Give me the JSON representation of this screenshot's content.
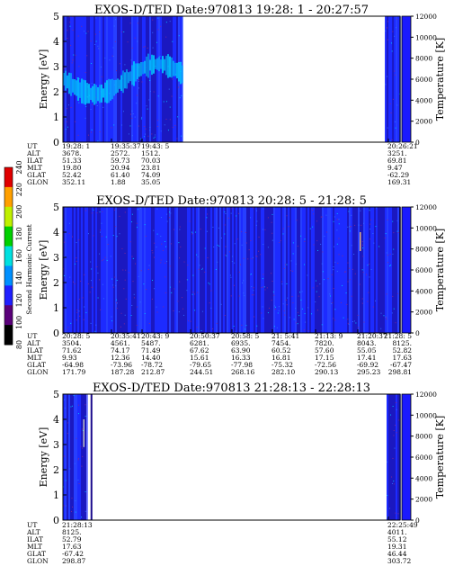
{
  "colors": {
    "background": "#ffffff",
    "spectrogram_low": "#1a0a8c",
    "spectrogram_mid": "#1e2bff",
    "spectrogram_high": "#00c8ff",
    "temperature_bar": "#1a1aff"
  },
  "colorbar": {
    "label": "Second Harmonic Current",
    "ticks": [
      "80",
      "100",
      "120",
      "140",
      "160",
      "180",
      "200",
      "220",
      "240"
    ],
    "colors": [
      "#000000",
      "#5a007a",
      "#2020ff",
      "#0090ff",
      "#00e0e0",
      "#00d000",
      "#c0f000",
      "#ffa000",
      "#e00000"
    ]
  },
  "panels": [
    {
      "title": "EXOS-D/TED   Date:970813  19:28: 1 - 20:27:57",
      "ylabel": "Energy [eV]",
      "y2label": "Temperature [K]",
      "yticks": [
        "0",
        "1",
        "2",
        "3",
        "4",
        "5"
      ],
      "y2ticks": [
        "0",
        "2000",
        "4000",
        "6000",
        "8000",
        "10000",
        "12000"
      ],
      "xticks": [
        "19:28: 1",
        "19:35:37",
        "19:43: 5",
        "20:26:21"
      ],
      "row_labels": [
        "UT",
        "ALT",
        "ILAT",
        "MLT",
        "GLAT",
        "GLON"
      ],
      "columns": [
        [
          "19:28: 1",
          "3678.",
          "51.33",
          "19.80",
          "52.42",
          "352.11"
        ],
        [
          "19:35:37",
          "2572.",
          "59.73",
          "20.94",
          "61.40",
          "1.88"
        ],
        [
          "19:43: 5",
          "1512.",
          "70.03",
          "23.81",
          "74.09",
          "35.05"
        ],
        [
          "20:26:21",
          "3251.",
          "69.81",
          "9.47",
          "-62.29",
          "169.31"
        ]
      ]
    },
    {
      "title": "EXOS-D/TED   Date:970813  20:28: 5 - 21:28: 5",
      "ylabel": "Energy [eV]",
      "y2label": "Temperature [K]",
      "yticks": [
        "0",
        "1",
        "2",
        "3",
        "4",
        "5"
      ],
      "y2ticks": [
        "0",
        "2000",
        "4000",
        "6000",
        "8000",
        "10000",
        "12000"
      ],
      "xticks": [
        "20:28: 5",
        "20:35:41",
        "20:43: 9",
        "20:50:37",
        "20:58: 5",
        "21: 5:41",
        "21:13: 9",
        "21:20:37",
        "21:28: 5"
      ],
      "row_labels": [
        "UT",
        "ALT",
        "ILAT",
        "MLT",
        "GLAT",
        "GLON"
      ],
      "columns": [
        [
          "20:28: 5",
          "3504.",
          "71.62",
          "9.93",
          "-64.98",
          "171.79"
        ],
        [
          "20:35:41",
          "4561.",
          "74.17",
          "12.36",
          "-73.96",
          "187.28"
        ],
        [
          "20:43: 9",
          "5487.",
          "71.49",
          "14.40",
          "-78.72",
          "212.87"
        ],
        [
          "20:50:37",
          "6281.",
          "67.62",
          "15.61",
          "-79.65",
          "244.51"
        ],
        [
          "20:58: 5",
          "6935.",
          "63.90",
          "16.33",
          "-77.98",
          "268.16"
        ],
        [
          "21: 5:41",
          "7454.",
          "60.52",
          "16.81",
          "-75.32",
          "282.10"
        ],
        [
          "21:13: 9",
          "7820.",
          "57.60",
          "17.15",
          "-72.56",
          "290.13"
        ],
        [
          "21:20:37",
          "8043.",
          "55.05",
          "17.41",
          "-69.92",
          "295.23"
        ],
        [
          "21:28: 5",
          "8125.",
          "52.82",
          "17.63",
          "-67.47",
          "298.81"
        ]
      ]
    },
    {
      "title": "EXOS-D/TED   Date:970813  21:28:13 - 22:28:13",
      "ylabel": "Energy [eV]",
      "y2label": "Temperature [K]",
      "yticks": [
        "0",
        "1",
        "2",
        "3",
        "4",
        "5"
      ],
      "y2ticks": [
        "0",
        "2000",
        "4000",
        "6000",
        "8000",
        "10000",
        "12000"
      ],
      "xticks": [
        "21:28:13",
        "22:25:49"
      ],
      "row_labels": [
        "UT",
        "ALT",
        "ILAT",
        "MLT",
        "GLAT",
        "GLON"
      ],
      "columns": [
        [
          "21:28:13",
          "8125.",
          "52.79",
          "17.63",
          "-67.42",
          "298.87"
        ],
        [
          "22:25:49",
          "4011.",
          "55.12",
          "19.31",
          "46.44",
          "303.72"
        ]
      ]
    }
  ],
  "chart_data": [
    {
      "type": "heatmap",
      "title": "EXOS-D/TED   Date:970813  19:28: 1 - 20:27:57",
      "xlabel": "",
      "ylabel": "Energy [eV]",
      "y2label": "Temperature [K]",
      "ylim": [
        0,
        5
      ],
      "y2lim": [
        0,
        12000
      ],
      "x_range": [
        "19:28: 1",
        "20:27:57"
      ],
      "data_coverage": [
        [
          "19:28: 1",
          "19:50:00"
        ],
        [
          "20:26:21",
          "20:27:57"
        ]
      ],
      "colorbar_label": "Second Harmonic Current",
      "colorbar_range": [
        80,
        240
      ]
    },
    {
      "type": "heatmap",
      "title": "EXOS-D/TED   Date:970813  20:28: 5 - 21:28: 5",
      "xlabel": "",
      "ylabel": "Energy [eV]",
      "y2label": "Temperature [K]",
      "ylim": [
        0,
        5
      ],
      "y2lim": [
        0,
        12000
      ],
      "x_range": [
        "20:28: 5",
        "21:28: 5"
      ],
      "data_coverage": [
        [
          "20:28: 5",
          "21:28: 5"
        ]
      ],
      "colorbar_label": "Second Harmonic Current",
      "colorbar_range": [
        80,
        240
      ]
    },
    {
      "type": "heatmap",
      "title": "EXOS-D/TED   Date:970813  21:28:13 - 22:28:13",
      "xlabel": "",
      "ylabel": "Energy [eV]",
      "y2label": "Temperature [K]",
      "ylim": [
        0,
        5
      ],
      "y2lim": [
        0,
        12000
      ],
      "x_range": [
        "21:28:13",
        "22:28:13"
      ],
      "data_coverage": [
        [
          "21:28:13",
          "21:31:00"
        ],
        [
          "22:25:49",
          "22:28:13"
        ]
      ],
      "colorbar_label": "Second Harmonic Current",
      "colorbar_range": [
        80,
        240
      ]
    }
  ]
}
